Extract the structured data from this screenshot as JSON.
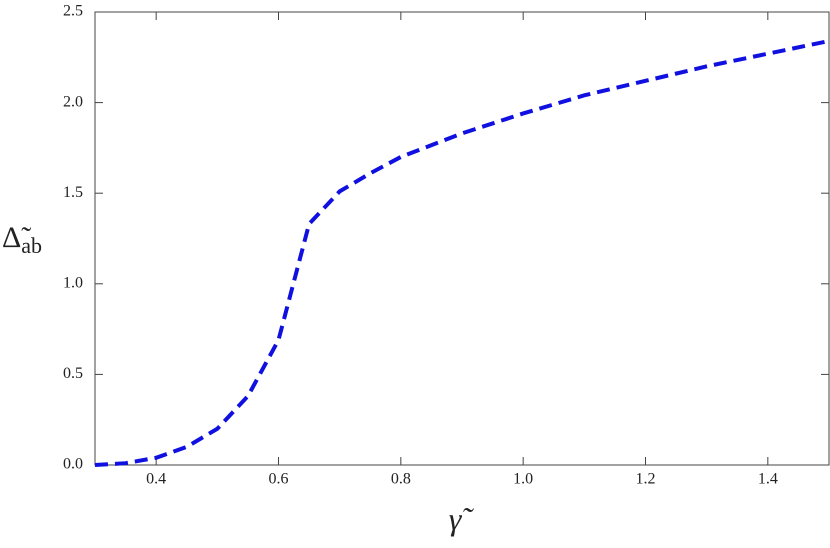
{
  "chart_data": {
    "type": "line",
    "xlabel": "γ̃",
    "ylabel": {
      "symbol": "Δ̃",
      "subscript": "ab"
    },
    "x": [
      0.3,
      0.35,
      0.4,
      0.45,
      0.5,
      0.55,
      0.6,
      0.65,
      0.7,
      0.75,
      0.8,
      0.9,
      1.0,
      1.1,
      1.2,
      1.3,
      1.4,
      1.5
    ],
    "series": [
      {
        "color": "#1010e0",
        "dashed": true,
        "values": [
          0,
          0.01,
          0.04,
          0.1,
          0.2,
          0.38,
          0.69,
          1.33,
          1.51,
          1.61,
          1.7,
          1.83,
          1.94,
          2.04,
          2.12,
          2.2,
          2.27,
          2.34
        ]
      }
    ],
    "xlim": [
      0.3,
      1.5
    ],
    "ylim": [
      0,
      2.5
    ],
    "xticks": [
      0.4,
      0.6,
      0.8,
      {
        "value": 1.0,
        "label": "1.0"
      },
      1.2,
      1.4
    ],
    "yticks": [
      {
        "value": 0,
        "label": "0.0"
      },
      0.5,
      {
        "value": 1.0,
        "label": "1.0"
      },
      1.5,
      {
        "value": 2.0,
        "label": "2.0"
      },
      2.5
    ],
    "grid": false
  }
}
